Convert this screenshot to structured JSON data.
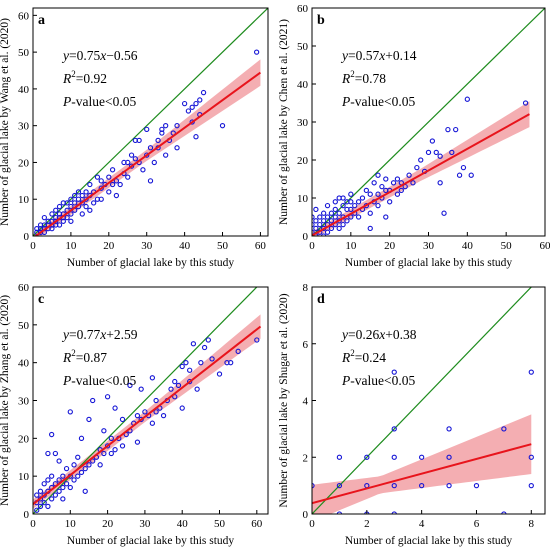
{
  "chart_data": [
    {
      "type": "scatter",
      "panel_letter": "a",
      "xlabel": "Number of glacial lake by this study",
      "ylabel": "Number of glacial lake by Wang et al. (2020)",
      "xlim": [
        0,
        62
      ],
      "ylim": [
        0,
        62
      ],
      "xticks": [
        0,
        10,
        20,
        30,
        40,
        50,
        60
      ],
      "yticks": [
        0,
        10,
        20,
        30,
        40,
        50,
        60
      ],
      "equation": {
        "y": "y",
        "rhs": "=0.75x−0.56",
        "x": "x",
        "r2": "=0.92",
        "p": "-value<0.05"
      },
      "fit": {
        "slope": 0.75,
        "intercept": -0.56,
        "band": [
          [
            0,
            1.0
          ],
          [
            30,
            1.5
          ],
          [
            60,
            3.6
          ]
        ]
      },
      "series_colors": {
        "points": "#1515d6",
        "fit": "#e8141c",
        "band": "#f3a5aa",
        "identity": "#1e8c1e"
      },
      "points": [
        [
          1,
          1
        ],
        [
          1,
          2
        ],
        [
          2,
          1
        ],
        [
          2,
          3
        ],
        [
          2,
          2
        ],
        [
          3,
          1
        ],
        [
          3,
          2
        ],
        [
          3,
          3
        ],
        [
          3,
          5
        ],
        [
          4,
          2
        ],
        [
          4,
          4
        ],
        [
          4,
          3
        ],
        [
          5,
          2
        ],
        [
          5,
          4
        ],
        [
          5,
          6
        ],
        [
          5,
          3
        ],
        [
          6,
          3
        ],
        [
          6,
          5
        ],
        [
          6,
          7
        ],
        [
          6,
          4
        ],
        [
          7,
          3
        ],
        [
          7,
          5
        ],
        [
          7,
          6
        ],
        [
          7,
          8
        ],
        [
          8,
          4
        ],
        [
          8,
          6
        ],
        [
          8,
          9
        ],
        [
          8,
          5
        ],
        [
          9,
          5
        ],
        [
          9,
          7
        ],
        [
          9,
          9
        ],
        [
          10,
          6
        ],
        [
          10,
          8
        ],
        [
          10,
          10
        ],
        [
          10,
          4
        ],
        [
          11,
          7
        ],
        [
          11,
          9
        ],
        [
          11,
          11
        ],
        [
          12,
          8
        ],
        [
          12,
          10
        ],
        [
          12,
          12
        ],
        [
          13,
          9
        ],
        [
          13,
          11
        ],
        [
          13,
          6
        ],
        [
          14,
          10
        ],
        [
          14,
          12
        ],
        [
          14,
          8
        ],
        [
          15,
          7
        ],
        [
          15,
          11
        ],
        [
          15,
          14
        ],
        [
          16,
          9
        ],
        [
          16,
          12
        ],
        [
          17,
          10
        ],
        [
          17,
          16
        ],
        [
          18,
          10
        ],
        [
          18,
          13
        ],
        [
          18,
          15
        ],
        [
          19,
          14
        ],
        [
          20,
          12
        ],
        [
          20,
          16
        ],
        [
          21,
          14
        ],
        [
          21,
          18
        ],
        [
          22,
          11
        ],
        [
          22,
          15
        ],
        [
          23,
          14
        ],
        [
          24,
          17
        ],
        [
          24,
          20
        ],
        [
          25,
          16
        ],
        [
          25,
          20
        ],
        [
          26,
          19
        ],
        [
          26,
          22
        ],
        [
          27,
          21
        ],
        [
          27,
          26
        ],
        [
          28,
          20
        ],
        [
          28,
          26
        ],
        [
          29,
          18
        ],
        [
          30,
          22
        ],
        [
          30,
          29
        ],
        [
          31,
          15
        ],
        [
          31,
          24
        ],
        [
          32,
          20
        ],
        [
          33,
          24
        ],
        [
          33,
          26
        ],
        [
          34,
          28
        ],
        [
          34,
          29
        ],
        [
          35,
          22
        ],
        [
          35,
          30
        ],
        [
          36,
          26
        ],
        [
          37,
          28
        ],
        [
          38,
          24
        ],
        [
          38,
          30
        ],
        [
          40,
          36
        ],
        [
          41,
          34
        ],
        [
          42,
          31
        ],
        [
          42,
          35
        ],
        [
          43,
          27
        ],
        [
          43,
          36
        ],
        [
          44,
          33
        ],
        [
          44,
          37
        ],
        [
          45,
          39
        ],
        [
          50,
          30
        ],
        [
          59,
          50
        ]
      ]
    },
    {
      "type": "scatter",
      "panel_letter": "b",
      "xlabel": "Number of glacial lake by this study",
      "ylabel": "Number of glacial lake by Chen et al. (2021)",
      "xlim": [
        0,
        60
      ],
      "ylim": [
        0,
        60
      ],
      "xticks": [
        0,
        10,
        20,
        30,
        40,
        50,
        60
      ],
      "yticks": [
        0,
        10,
        20,
        30,
        40,
        50,
        60
      ],
      "equation": {
        "y": "y",
        "rhs": "=0.57x+0.14",
        "x": "x",
        "r2": "=0.78",
        "p": "-value<0.05"
      },
      "fit": {
        "slope": 0.57,
        "intercept": 0.14,
        "band": [
          [
            0,
            1.0
          ],
          [
            28,
            1.6
          ],
          [
            56,
            3.4
          ]
        ]
      },
      "series_colors": {
        "points": "#1515d6",
        "fit": "#e8141c",
        "band": "#f3a5aa",
        "identity": "#1e8c1e"
      },
      "points": [
        [
          0,
          1
        ],
        [
          0,
          3
        ],
        [
          0,
          5
        ],
        [
          1,
          0
        ],
        [
          1,
          2
        ],
        [
          1,
          4
        ],
        [
          1,
          7
        ],
        [
          2,
          1
        ],
        [
          2,
          3
        ],
        [
          2,
          5
        ],
        [
          3,
          0
        ],
        [
          3,
          2
        ],
        [
          3,
          4
        ],
        [
          3,
          6
        ],
        [
          4,
          1
        ],
        [
          4,
          3
        ],
        [
          4,
          5
        ],
        [
          4,
          8
        ],
        [
          5,
          2
        ],
        [
          5,
          4
        ],
        [
          5,
          6
        ],
        [
          6,
          3
        ],
        [
          6,
          5
        ],
        [
          6,
          7
        ],
        [
          6,
          9
        ],
        [
          7,
          2
        ],
        [
          7,
          4
        ],
        [
          7,
          6
        ],
        [
          7,
          10
        ],
        [
          8,
          3
        ],
        [
          8,
          5
        ],
        [
          8,
          8
        ],
        [
          8,
          10
        ],
        [
          9,
          4
        ],
        [
          9,
          7
        ],
        [
          9,
          9
        ],
        [
          10,
          5
        ],
        [
          10,
          7
        ],
        [
          10,
          9
        ],
        [
          10,
          11
        ],
        [
          11,
          6
        ],
        [
          11,
          8
        ],
        [
          12,
          5
        ],
        [
          12,
          9
        ],
        [
          13,
          7
        ],
        [
          13,
          10
        ],
        [
          14,
          8
        ],
        [
          14,
          12
        ],
        [
          15,
          6
        ],
        [
          15,
          11
        ],
        [
          16,
          9
        ],
        [
          16,
          14
        ],
        [
          17,
          8
        ],
        [
          17,
          11
        ],
        [
          17,
          16
        ],
        [
          18,
          10
        ],
        [
          18,
          13
        ],
        [
          19,
          12
        ],
        [
          19,
          15
        ],
        [
          20,
          9
        ],
        [
          20,
          12
        ],
        [
          21,
          14
        ],
        [
          22,
          11
        ],
        [
          22,
          15
        ],
        [
          23,
          12
        ],
        [
          23,
          14
        ],
        [
          24,
          13
        ],
        [
          25,
          16
        ],
        [
          26,
          14
        ],
        [
          27,
          18
        ],
        [
          28,
          20
        ],
        [
          29,
          17
        ],
        [
          30,
          22
        ],
        [
          31,
          25
        ],
        [
          32,
          22
        ],
        [
          33,
          14
        ],
        [
          33,
          21
        ],
        [
          34,
          6
        ],
        [
          35,
          28
        ],
        [
          36,
          22
        ],
        [
          37,
          28
        ],
        [
          38,
          16
        ],
        [
          39,
          18
        ],
        [
          40,
          36
        ],
        [
          41,
          16
        ],
        [
          55,
          35
        ],
        [
          15,
          2
        ],
        [
          19,
          5
        ]
      ]
    },
    {
      "type": "scatter",
      "panel_letter": "c",
      "xlabel": "Number of glacial lake by this study",
      "ylabel": "Number of glacial lake by Zhang et al. (2020)",
      "xlim": [
        0,
        63
      ],
      "ylim": [
        0,
        60
      ],
      "xticks": [
        0,
        10,
        20,
        30,
        40,
        50,
        60
      ],
      "yticks": [
        0,
        10,
        20,
        30,
        40,
        50,
        60
      ],
      "equation": {
        "y": "y",
        "rhs": "=0.77x+2.59",
        "x": "x",
        "r2": "=0.87",
        "p": "-value<0.05"
      },
      "fit": {
        "slope": 0.77,
        "intercept": 2.59,
        "band": [
          [
            0,
            1.2
          ],
          [
            30,
            1.4
          ],
          [
            61,
            3.2
          ]
        ]
      },
      "series_colors": {
        "points": "#1515d6",
        "fit": "#e8141c",
        "band": "#f3a5aa",
        "identity": "#1e8c1e"
      },
      "points": [
        [
          1,
          1
        ],
        [
          1,
          3
        ],
        [
          1,
          5
        ],
        [
          2,
          2
        ],
        [
          2,
          4
        ],
        [
          2,
          6
        ],
        [
          3,
          3
        ],
        [
          3,
          5
        ],
        [
          3,
          8
        ],
        [
          4,
          2
        ],
        [
          4,
          6
        ],
        [
          4,
          9
        ],
        [
          4,
          16
        ],
        [
          5,
          4
        ],
        [
          5,
          7
        ],
        [
          5,
          10
        ],
        [
          5,
          21
        ],
        [
          6,
          5
        ],
        [
          6,
          8
        ],
        [
          6,
          16
        ],
        [
          7,
          6
        ],
        [
          7,
          9
        ],
        [
          7,
          14
        ],
        [
          8,
          7
        ],
        [
          8,
          10
        ],
        [
          8,
          4
        ],
        [
          9,
          8
        ],
        [
          9,
          12
        ],
        [
          10,
          7
        ],
        [
          10,
          10
        ],
        [
          10,
          27
        ],
        [
          11,
          9
        ],
        [
          11,
          13
        ],
        [
          12,
          10
        ],
        [
          12,
          15
        ],
        [
          13,
          11
        ],
        [
          13,
          20
        ],
        [
          14,
          12
        ],
        [
          14,
          6
        ],
        [
          15,
          13
        ],
        [
          15,
          25
        ],
        [
          16,
          14
        ],
        [
          16,
          30
        ],
        [
          17,
          15
        ],
        [
          18,
          13
        ],
        [
          18,
          17
        ],
        [
          19,
          16
        ],
        [
          19,
          22
        ],
        [
          20,
          18
        ],
        [
          20,
          31
        ],
        [
          21,
          16
        ],
        [
          21,
          20
        ],
        [
          22,
          17
        ],
        [
          22,
          28
        ],
        [
          23,
          20
        ],
        [
          24,
          18
        ],
        [
          24,
          25
        ],
        [
          25,
          21
        ],
        [
          26,
          22
        ],
        [
          27,
          24
        ],
        [
          28,
          19
        ],
        [
          28,
          26
        ],
        [
          29,
          25
        ],
        [
          29,
          33
        ],
        [
          30,
          27
        ],
        [
          31,
          26
        ],
        [
          32,
          24
        ],
        [
          32,
          36
        ],
        [
          33,
          27
        ],
        [
          33,
          30
        ],
        [
          34,
          28
        ],
        [
          35,
          26
        ],
        [
          36,
          30
        ],
        [
          37,
          33
        ],
        [
          38,
          31
        ],
        [
          38,
          35
        ],
        [
          39,
          34
        ],
        [
          40,
          28
        ],
        [
          40,
          39
        ],
        [
          41,
          40
        ],
        [
          42,
          35
        ],
        [
          42,
          38
        ],
        [
          43,
          45
        ],
        [
          44,
          33
        ],
        [
          45,
          40
        ],
        [
          46,
          44
        ],
        [
          47,
          46
        ],
        [
          48,
          41
        ],
        [
          50,
          37
        ],
        [
          52,
          40
        ],
        [
          53,
          40
        ],
        [
          55,
          43
        ],
        [
          60,
          46
        ],
        [
          26,
          34
        ]
      ]
    },
    {
      "type": "scatter",
      "panel_letter": "d",
      "xlabel": "Number of glacial lake by this study",
      "ylabel": "Number of glacial lake by Shugar et al. (2020)",
      "xlim": [
        0,
        8.5
      ],
      "ylim": [
        0,
        8
      ],
      "xticks": [
        0,
        2,
        4,
        6,
        8
      ],
      "yticks": [
        0,
        2,
        4,
        6,
        8
      ],
      "equation": {
        "y": "y",
        "rhs": "=0.26x+0.38",
        "x": "x",
        "r2": "=0.24",
        "p": "-value<0.05"
      },
      "fit": {
        "slope": 0.26,
        "intercept": 0.38,
        "band": [
          [
            0,
            0.65
          ],
          [
            2.5,
            0.3
          ],
          [
            8,
            1.05
          ]
        ]
      },
      "series_colors": {
        "points": "#1515d6",
        "fit": "#e8141c",
        "band": "#f3a5aa",
        "identity": "#1e8c1e"
      },
      "points": [
        [
          0,
          1
        ],
        [
          1,
          0
        ],
        [
          1,
          1
        ],
        [
          2,
          1
        ],
        [
          2,
          2
        ],
        [
          3,
          1
        ],
        [
          3,
          2
        ],
        [
          3,
          3
        ],
        [
          3,
          5
        ],
        [
          4,
          1
        ],
        [
          4,
          2
        ],
        [
          5,
          1
        ],
        [
          5,
          3
        ],
        [
          6,
          1
        ],
        [
          7,
          0
        ],
        [
          7,
          3
        ],
        [
          8,
          1
        ],
        [
          8,
          2
        ],
        [
          8,
          5
        ],
        [
          1,
          2
        ],
        [
          5,
          2
        ],
        [
          3,
          0
        ],
        [
          2,
          0
        ]
      ]
    }
  ]
}
